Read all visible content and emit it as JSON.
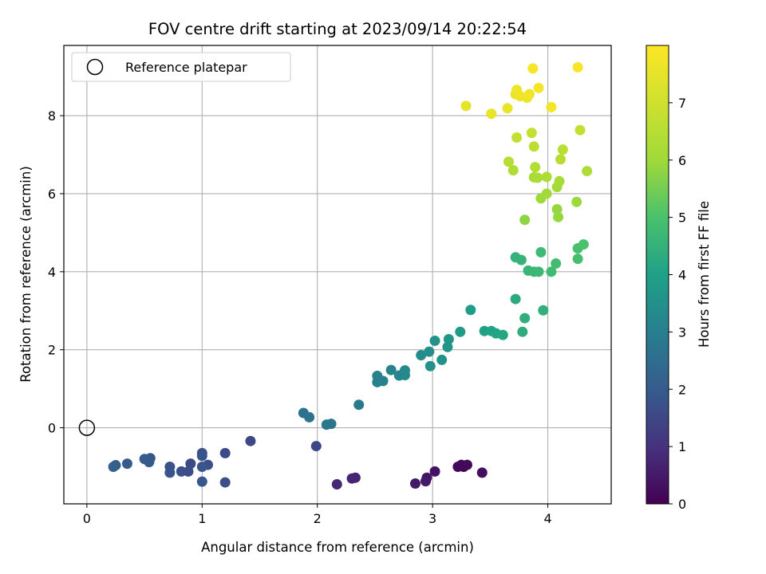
{
  "chart_data": {
    "type": "scatter",
    "title": "FOV centre drift starting at 2023/09/14 20:22:54",
    "xlabel": "Angular distance from reference (arcmin)",
    "ylabel": "Rotation from reference (arcmin)",
    "xlim": [
      -0.2,
      4.55
    ],
    "ylim": [
      -1.95,
      9.8
    ],
    "xticks": [
      0,
      1,
      2,
      3,
      4
    ],
    "yticks": [
      0,
      2,
      4,
      6,
      8
    ],
    "grid": true,
    "legend": {
      "position": "top-left",
      "entries": [
        "Reference platepar"
      ]
    },
    "reference_point": {
      "x": 0,
      "y": 0,
      "label": "Reference platepar"
    },
    "colorbar": {
      "label": "Hours from first FF file",
      "colormap": "viridis",
      "range": [
        0,
        8
      ],
      "ticks": [
        0,
        1,
        2,
        3,
        4,
        5,
        6,
        7
      ]
    },
    "points": [
      {
        "x": 3.27,
        "y": -1.0,
        "c": 0.05
      },
      {
        "x": 3.22,
        "y": -1.0,
        "c": 0.1
      },
      {
        "x": 3.25,
        "y": -0.95,
        "c": 0.15
      },
      {
        "x": 3.3,
        "y": -0.95,
        "c": 0.2
      },
      {
        "x": 3.43,
        "y": -1.15,
        "c": 0.25
      },
      {
        "x": 3.02,
        "y": -1.12,
        "c": 0.35
      },
      {
        "x": 2.95,
        "y": -1.28,
        "c": 0.4
      },
      {
        "x": 2.94,
        "y": -1.37,
        "c": 0.45
      },
      {
        "x": 2.85,
        "y": -1.43,
        "c": 0.5
      },
      {
        "x": 2.33,
        "y": -1.28,
        "c": 0.7
      },
      {
        "x": 2.3,
        "y": -1.3,
        "c": 0.75
      },
      {
        "x": 2.17,
        "y": -1.45,
        "c": 0.8
      },
      {
        "x": 1.99,
        "y": -0.47,
        "c": 1.5
      },
      {
        "x": 1.42,
        "y": -0.34,
        "c": 1.55
      },
      {
        "x": 1.2,
        "y": -0.65,
        "c": 1.6
      },
      {
        "x": 1.2,
        "y": -1.4,
        "c": 1.65
      },
      {
        "x": 1.05,
        "y": -0.95,
        "c": 1.7
      },
      {
        "x": 1.0,
        "y": -0.65,
        "c": 1.75
      },
      {
        "x": 1.0,
        "y": -0.72,
        "c": 1.8
      },
      {
        "x": 1.0,
        "y": -1.0,
        "c": 1.85
      },
      {
        "x": 1.0,
        "y": -1.38,
        "c": 1.9
      },
      {
        "x": 0.9,
        "y": -0.92,
        "c": 1.6
      },
      {
        "x": 0.88,
        "y": -1.12,
        "c": 1.65
      },
      {
        "x": 0.82,
        "y": -1.12,
        "c": 1.7
      },
      {
        "x": 0.72,
        "y": -1.0,
        "c": 1.75
      },
      {
        "x": 0.72,
        "y": -1.15,
        "c": 1.8
      },
      {
        "x": 0.55,
        "y": -0.78,
        "c": 1.85
      },
      {
        "x": 0.54,
        "y": -0.85,
        "c": 1.9
      },
      {
        "x": 0.54,
        "y": -0.88,
        "c": 1.95
      },
      {
        "x": 0.5,
        "y": -0.8,
        "c": 2.0
      },
      {
        "x": 0.35,
        "y": -0.92,
        "c": 2.0
      },
      {
        "x": 0.25,
        "y": -0.96,
        "c": 2.05
      },
      {
        "x": 0.23,
        "y": -1.0,
        "c": 2.1
      },
      {
        "x": 1.88,
        "y": 0.38,
        "c": 2.6
      },
      {
        "x": 1.93,
        "y": 0.27,
        "c": 2.65
      },
      {
        "x": 2.08,
        "y": 0.08,
        "c": 2.7
      },
      {
        "x": 2.12,
        "y": 0.1,
        "c": 2.75
      },
      {
        "x": 2.36,
        "y": 0.59,
        "c": 2.85
      },
      {
        "x": 2.52,
        "y": 1.17,
        "c": 3.0
      },
      {
        "x": 2.52,
        "y": 1.33,
        "c": 3.05
      },
      {
        "x": 2.57,
        "y": 1.2,
        "c": 3.1
      },
      {
        "x": 2.64,
        "y": 1.48,
        "c": 3.15
      },
      {
        "x": 2.71,
        "y": 1.34,
        "c": 3.2
      },
      {
        "x": 2.76,
        "y": 1.35,
        "c": 3.25
      },
      {
        "x": 2.76,
        "y": 1.47,
        "c": 3.3
      },
      {
        "x": 2.9,
        "y": 1.86,
        "c": 3.4
      },
      {
        "x": 2.97,
        "y": 1.95,
        "c": 3.45
      },
      {
        "x": 2.98,
        "y": 1.58,
        "c": 3.5
      },
      {
        "x": 3.02,
        "y": 2.23,
        "c": 3.55
      },
      {
        "x": 3.08,
        "y": 1.74,
        "c": 3.6
      },
      {
        "x": 3.13,
        "y": 2.07,
        "c": 3.65
      },
      {
        "x": 3.14,
        "y": 2.27,
        "c": 3.7
      },
      {
        "x": 3.24,
        "y": 2.46,
        "c": 3.8
      },
      {
        "x": 3.33,
        "y": 3.02,
        "c": 3.85
      },
      {
        "x": 3.45,
        "y": 2.48,
        "c": 4.0
      },
      {
        "x": 3.51,
        "y": 2.48,
        "c": 4.05
      },
      {
        "x": 3.55,
        "y": 2.42,
        "c": 4.1
      },
      {
        "x": 3.61,
        "y": 2.38,
        "c": 4.15
      },
      {
        "x": 3.72,
        "y": 3.3,
        "c": 4.3
      },
      {
        "x": 3.78,
        "y": 2.46,
        "c": 4.35
      },
      {
        "x": 3.8,
        "y": 2.81,
        "c": 4.4
      },
      {
        "x": 3.96,
        "y": 3.01,
        "c": 4.45
      },
      {
        "x": 3.72,
        "y": 4.37,
        "c": 4.5
      },
      {
        "x": 3.77,
        "y": 4.3,
        "c": 4.55
      },
      {
        "x": 3.83,
        "y": 4.03,
        "c": 4.6
      },
      {
        "x": 3.88,
        "y": 4.0,
        "c": 4.65
      },
      {
        "x": 3.92,
        "y": 4.0,
        "c": 4.7
      },
      {
        "x": 3.94,
        "y": 4.5,
        "c": 4.75
      },
      {
        "x": 4.03,
        "y": 4.0,
        "c": 4.8
      },
      {
        "x": 4.07,
        "y": 4.21,
        "c": 4.85
      },
      {
        "x": 4.26,
        "y": 4.33,
        "c": 4.9
      },
      {
        "x": 4.26,
        "y": 4.6,
        "c": 4.95
      },
      {
        "x": 4.31,
        "y": 4.7,
        "c": 5.0
      },
      {
        "x": 3.8,
        "y": 5.33,
        "c": 5.8
      },
      {
        "x": 4.08,
        "y": 5.6,
        "c": 5.85
      },
      {
        "x": 4.09,
        "y": 5.4,
        "c": 5.9
      },
      {
        "x": 4.25,
        "y": 5.79,
        "c": 5.95
      },
      {
        "x": 3.94,
        "y": 5.88,
        "c": 6.0
      },
      {
        "x": 3.99,
        "y": 6.0,
        "c": 6.05
      },
      {
        "x": 4.08,
        "y": 6.17,
        "c": 6.1
      },
      {
        "x": 4.1,
        "y": 6.32,
        "c": 6.15
      },
      {
        "x": 3.88,
        "y": 6.42,
        "c": 6.2
      },
      {
        "x": 3.91,
        "y": 6.41,
        "c": 6.25
      },
      {
        "x": 3.99,
        "y": 6.43,
        "c": 6.3
      },
      {
        "x": 4.34,
        "y": 6.58,
        "c": 6.3
      },
      {
        "x": 3.7,
        "y": 6.6,
        "c": 6.35
      },
      {
        "x": 3.89,
        "y": 6.68,
        "c": 6.4
      },
      {
        "x": 3.66,
        "y": 6.82,
        "c": 6.45
      },
      {
        "x": 4.11,
        "y": 6.88,
        "c": 6.5
      },
      {
        "x": 4.13,
        "y": 7.13,
        "c": 6.55
      },
      {
        "x": 3.88,
        "y": 7.21,
        "c": 6.6
      },
      {
        "x": 3.73,
        "y": 7.44,
        "c": 6.7
      },
      {
        "x": 3.86,
        "y": 7.56,
        "c": 6.75
      },
      {
        "x": 4.28,
        "y": 7.63,
        "c": 6.8
      },
      {
        "x": 3.29,
        "y": 8.25,
        "c": 7.5
      },
      {
        "x": 3.51,
        "y": 8.05,
        "c": 7.55
      },
      {
        "x": 3.65,
        "y": 8.19,
        "c": 7.6
      },
      {
        "x": 3.72,
        "y": 8.55,
        "c": 7.6
      },
      {
        "x": 3.73,
        "y": 8.66,
        "c": 7.65
      },
      {
        "x": 3.76,
        "y": 8.5,
        "c": 7.7
      },
      {
        "x": 3.82,
        "y": 8.46,
        "c": 7.7
      },
      {
        "x": 3.84,
        "y": 8.55,
        "c": 7.75
      },
      {
        "x": 3.92,
        "y": 8.71,
        "c": 7.8
      },
      {
        "x": 4.03,
        "y": 8.22,
        "c": 7.8
      },
      {
        "x": 3.87,
        "y": 9.21,
        "c": 7.85
      },
      {
        "x": 4.26,
        "y": 9.24,
        "c": 7.9
      }
    ]
  }
}
